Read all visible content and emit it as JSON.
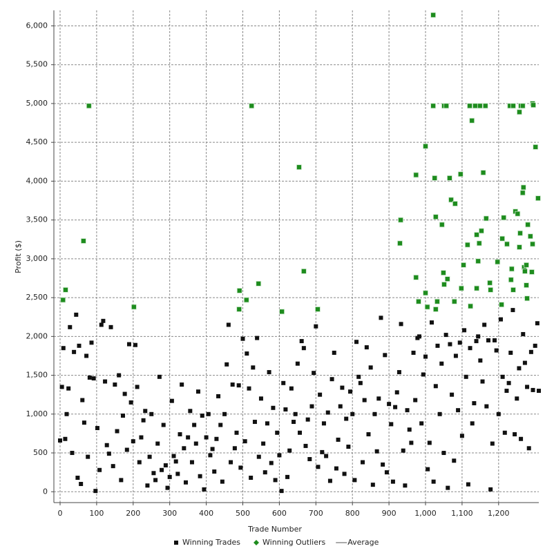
{
  "chart_data": {
    "type": "scatter",
    "xlabel": "Trade Number",
    "ylabel": "Profit ($)",
    "xlim": [
      -17,
      1310
    ],
    "ylim": [
      -140,
      6200
    ],
    "xticks": [
      0,
      100,
      200,
      300,
      400,
      500,
      600,
      700,
      800,
      900,
      {
        "value": 1000,
        "label": "1,000"
      },
      {
        "value": 1100,
        "label": "1,100"
      },
      {
        "value": 1200,
        "label": "1,200"
      }
    ],
    "yticks": [
      0,
      500,
      {
        "value": 1000,
        "label": "1,000"
      },
      {
        "value": 1500,
        "label": "1,500"
      },
      {
        "value": 2000,
        "label": "2,000"
      },
      {
        "value": 2500,
        "label": "2,500"
      },
      {
        "value": 3000,
        "label": "3,000"
      },
      {
        "value": 3500,
        "label": "3,500"
      },
      {
        "value": 4000,
        "label": "4,000"
      },
      {
        "value": 4500,
        "label": "4,500"
      },
      {
        "value": 5000,
        "label": "5,000"
      },
      {
        "value": 5500,
        "label": "5,500"
      },
      {
        "value": 6000,
        "label": "6,000"
      }
    ],
    "grid": true,
    "legend": "bottom",
    "series": [
      {
        "name": "Winning Trades",
        "color": "#111111",
        "marker": "square",
        "x": [
          0,
          5,
          9,
          14,
          18,
          23,
          27,
          33,
          38,
          44,
          48,
          52,
          57,
          61,
          66,
          72,
          76,
          81,
          86,
          92,
          97,
          102,
          108,
          113,
          118,
          123,
          128,
          134,
          139,
          145,
          150,
          156,
          161,
          167,
          172,
          177,
          183,
          189,
          194,
          200,
          206,
          211,
          217,
          222,
          228,
          233,
          239,
          245,
          250,
          256,
          261,
          267,
          272,
          278,
          283,
          289,
          294,
          300,
          306,
          311,
          317,
          322,
          328,
          333,
          339,
          344,
          350,
          356,
          361,
          367,
          372,
          378,
          383,
          389,
          394,
          400,
          406,
          411,
          417,
          422,
          428,
          433,
          439,
          444,
          450,
          456,
          461,
          467,
          472,
          478,
          483,
          489,
          494,
          500,
          506,
          511,
          517,
          522,
          528,
          533,
          539,
          544,
          550,
          556,
          561,
          567,
          572,
          578,
          583,
          589,
          594,
          600,
          606,
          611,
          617,
          622,
          628,
          633,
          639,
          644,
          650,
          656,
          661,
          667,
          672,
          678,
          683,
          689,
          694,
          700,
          706,
          711,
          717,
          722,
          728,
          733,
          739,
          744,
          750,
          756,
          761,
          767,
          772,
          778,
          783,
          789,
          794,
          800,
          806,
          811,
          817,
          822,
          828,
          833,
          839,
          844,
          850,
          856,
          861,
          867,
          872,
          878,
          883,
          889,
          894,
          900,
          906,
          911,
          917,
          922,
          928,
          933,
          939,
          944,
          950,
          956,
          961,
          967,
          972,
          978,
          983,
          989,
          994,
          1000,
          1006,
          1011,
          1017,
          1022,
          1028,
          1033,
          1039,
          1044,
          1050,
          1056,
          1061,
          1067,
          1072,
          1078,
          1083,
          1089,
          1094,
          1100,
          1106,
          1111,
          1117,
          1122,
          1128,
          1133,
          1139,
          1144,
          1150,
          1156,
          1161,
          1167,
          1172,
          1178,
          1183,
          1189,
          1194,
          1200,
          1206,
          1211,
          1217,
          1222,
          1228,
          1233,
          1239,
          1244,
          1250,
          1256,
          1261,
          1267,
          1272,
          1278,
          1283,
          1289,
          1294,
          1300,
          1306,
          1310
        ],
        "values": [
          660,
          1350,
          1850,
          680,
          1000,
          1330,
          2120,
          500,
          1800,
          2280,
          180,
          1880,
          100,
          1180,
          890,
          1750,
          450,
          1470,
          1920,
          1460,
          10,
          820,
          280,
          2150,
          2200,
          1420,
          600,
          490,
          2120,
          330,
          1380,
          780,
          1500,
          150,
          980,
          1260,
          540,
          1900,
          1150,
          650,
          1890,
          1350,
          380,
          700,
          920,
          1040,
          80,
          450,
          1000,
          240,
          150,
          620,
          1480,
          280,
          860,
          340,
          50,
          190,
          1170,
          460,
          390,
          230,
          740,
          1380,
          560,
          120,
          700,
          1040,
          380,
          860,
          620,
          1290,
          200,
          980,
          30,
          700,
          1000,
          470,
          550,
          260,
          680,
          1230,
          860,
          130,
          1000,
          1640,
          2150,
          380,
          1380,
          560,
          760,
          1370,
          310,
          1970,
          650,
          1780,
          1330,
          180,
          1600,
          900,
          1980,
          450,
          1200,
          620,
          250,
          880,
          1540,
          370,
          1080,
          150,
          760,
          470,
          10,
          1400,
          1060,
          190,
          530,
          1330,
          900,
          1000,
          1650,
          760,
          1940,
          1850,
          590,
          930,
          420,
          1100,
          1530,
          2130,
          320,
          1250,
          510,
          880,
          460,
          1020,
          140,
          1450,
          1790,
          300,
          670,
          1100,
          1340,
          230,
          940,
          580,
          1290,
          1000,
          150,
          1930,
          1480,
          1400,
          380,
          1180,
          1860,
          740,
          1600,
          90,
          1000,
          520,
          1200,
          2240,
          350,
          1760,
          250,
          1130,
          870,
          130,
          1090,
          1280,
          1540,
          2160,
          530,
          80,
          1050,
          800,
          630,
          1790,
          1180,
          1980,
          2000,
          880,
          1510,
          1740,
          290,
          630,
          2180,
          130,
          1360,
          1880,
          1000,
          1650,
          500,
          2020,
          50,
          1900,
          1250,
          400,
          1750,
          1050,
          1920,
          720,
          2080,
          1480,
          95,
          1850,
          880,
          1140,
          1940,
          2000,
          1690,
          1420,
          2150,
          1100,
          1950,
          30,
          620,
          1950,
          1820,
          1000,
          2220,
          1480,
          760,
          1300,
          1400,
          1790,
          2340,
          740,
          1200,
          1590,
          680,
          2030,
          1660,
          1350,
          560,
          1800,
          1310,
          1880,
          2170,
          1300
        ]
      },
      {
        "name": "Winning Outliers",
        "color": "#1e8c1e",
        "marker": "diamond",
        "x": [
          8,
          15,
          79,
          64,
          202,
          524,
          491,
          490,
          510,
          543,
          607,
          654,
          667,
          705,
          932,
          930,
          1021,
          1021,
          1051,
          1057,
          1000,
          1025,
          974,
          1066,
          1096,
          1070,
          1081,
          1028,
          1045,
          974,
          1000,
          981,
          1005,
          1028,
          1032,
          1051,
          1049,
          1060,
          1079,
          1098,
          1104,
          1115,
          1123,
          1127,
          1121,
          1136,
          1149,
          1164,
          1140,
          1144,
          1147,
          1153,
          1158,
          1166,
          1140,
          1176,
          1178,
          1197,
          1208,
          1214,
          1210,
          1223,
          1231,
          1240,
          1261,
          1266,
          1257,
          1236,
          1234,
          1240,
          1246,
          1252,
          1259,
          1257,
          1266,
          1268,
          1270,
          1276,
          1272,
          1278,
          1276,
          1280,
          1287,
          1293,
          1291,
          1293,
          1295,
          1301,
          1308
        ],
        "values": [
          2470,
          2600,
          4970,
          3230,
          2380,
          4970,
          2590,
          2350,
          2470,
          2680,
          2320,
          4180,
          2840,
          2350,
          3500,
          3200,
          6140,
          4970,
          4970,
          4970,
          4450,
          4040,
          4080,
          4040,
          4090,
          3760,
          3710,
          3540,
          3440,
          2760,
          2560,
          2450,
          2380,
          2350,
          2450,
          2670,
          2820,
          2740,
          2450,
          2620,
          2920,
          3180,
          2390,
          4780,
          4970,
          4970,
          4970,
          4970,
          3310,
          2970,
          3200,
          3360,
          4110,
          3520,
          2620,
          2690,
          2600,
          2960,
          2410,
          3530,
          3260,
          3190,
          4970,
          4970,
          4970,
          4970,
          4890,
          2870,
          2730,
          2600,
          3610,
          3580,
          3330,
          3150,
          3850,
          3920,
          2890,
          2920,
          2840,
          2490,
          2660,
          3440,
          3290,
          3190,
          2830,
          5000,
          4980,
          4440,
          3780
        ]
      },
      {
        "name": "Average",
        "color": "#555555",
        "marker": "line"
      }
    ]
  }
}
